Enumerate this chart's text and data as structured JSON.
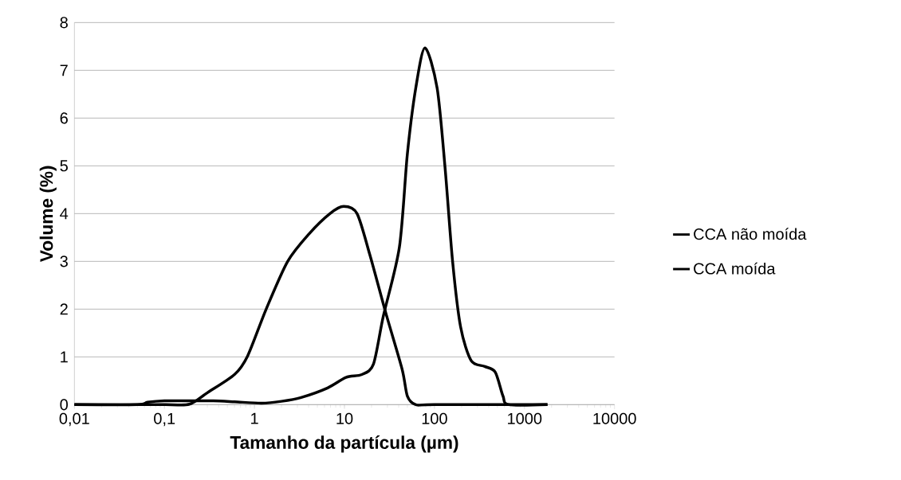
{
  "chart_data": {
    "type": "line",
    "xlabel": "Tamanho da partícula (µm)",
    "ylabel": "Volume (%)",
    "series": [
      {
        "name": "CCA não moída",
        "color": "#000000",
        "x": [
          0.01,
          0.05,
          0.065,
          0.1,
          0.2,
          0.35,
          0.6,
          1.2,
          2.0,
          3.3,
          6.5,
          10.4,
          15.6,
          21,
          27,
          40.8,
          50,
          62,
          78.5,
          107,
          131,
          159,
          195,
          256,
          362,
          474,
          577,
          670,
          1800
        ],
        "values": [
          0,
          0,
          0.05,
          0.08,
          0.08,
          0.08,
          0.06,
          0.03,
          0.07,
          0.15,
          0.35,
          0.57,
          0.63,
          0.85,
          1.85,
          3.3,
          5.25,
          6.63,
          7.47,
          6.63,
          4.97,
          3.0,
          1.63,
          0.92,
          0.8,
          0.68,
          0.18,
          0,
          0
        ]
      },
      {
        "name": "CCA moída",
        "color": "#000000",
        "x": [
          0.01,
          0.1,
          0.19,
          0.3,
          0.6,
          0.84,
          1.35,
          2.34,
          4.06,
          6.9,
          9.8,
          13.8,
          19.2,
          28.8,
          43.6,
          50,
          62,
          100,
          1800
        ],
        "values": [
          0,
          0,
          0.01,
          0.25,
          0.63,
          1.02,
          2.0,
          3.0,
          3.58,
          4.0,
          4.15,
          4.0,
          3.13,
          1.92,
          0.75,
          0.18,
          0,
          0,
          0
        ]
      }
    ],
    "log": "x",
    "xlim": [
      0.01,
      10000
    ],
    "xticks": [
      {
        "value": 0.01,
        "label": "0,01"
      },
      {
        "value": 0.1,
        "label": "0,1"
      },
      1,
      10,
      100,
      1000,
      10000
    ],
    "ylim": [
      0,
      8
    ],
    "yticks": [
      0,
      1,
      2,
      3,
      4,
      5,
      6,
      7,
      8
    ],
    "grid": "y",
    "legend": "right",
    "line_style": "solid",
    "marker": "none"
  }
}
